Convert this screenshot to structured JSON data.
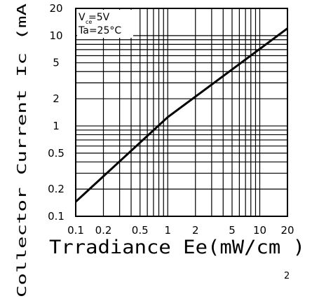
{
  "chart_data": {
    "type": "line",
    "title": "",
    "xlabel": "Trradiance Ee(mW/cm )",
    "xlabel_superscript": "2",
    "ylabel": "Collector Current Ic (mA",
    "x_scale": "log",
    "y_scale": "log",
    "xlim": [
      0.1,
      20
    ],
    "ylim": [
      0.1,
      20
    ],
    "x_ticks": [
      0.1,
      0.2,
      0.5,
      1,
      2,
      5,
      10,
      20
    ],
    "x_tick_labels": [
      "0.1",
      "0.2",
      "0.5",
      "1",
      "2",
      "5",
      "10",
      "20"
    ],
    "y_ticks": [
      0.1,
      0.2,
      0.5,
      1,
      2,
      5,
      10,
      20
    ],
    "y_tick_labels": [
      "0.1",
      "0.2",
      "0.5",
      "1",
      "2",
      "5",
      "10",
      "20"
    ],
    "grid": true,
    "annotations": [
      "V  =5V",
      "Ta=25°C"
    ],
    "annotation_subscript": "ce",
    "series": [
      {
        "x": [
          0.1,
          1,
          20
        ],
        "y": [
          0.145,
          1.25,
          12
        ]
      }
    ]
  }
}
